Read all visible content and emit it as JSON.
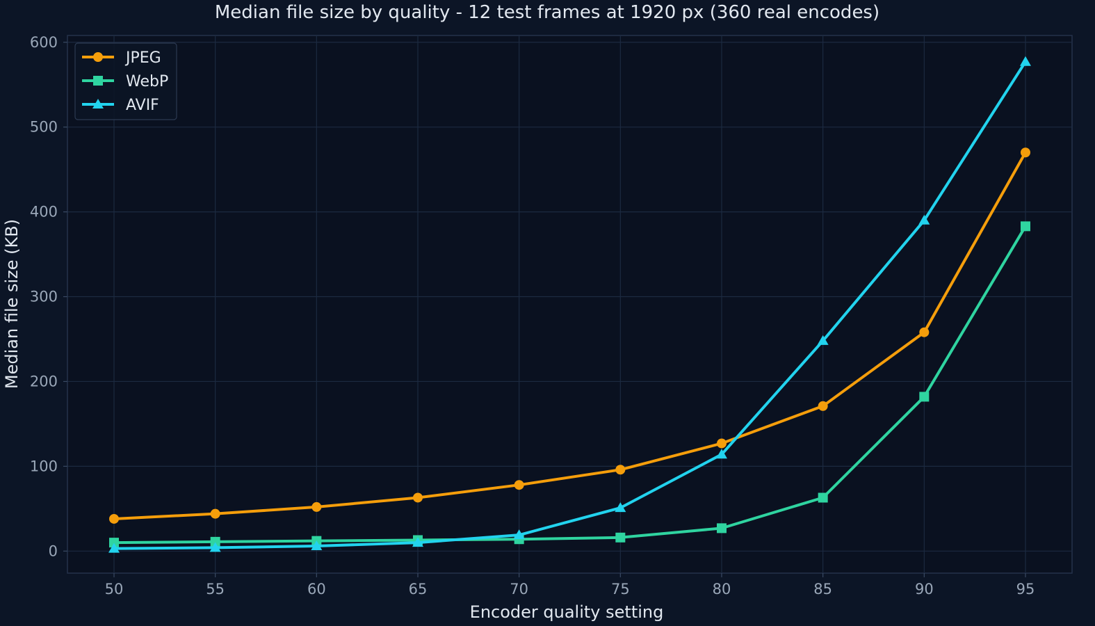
{
  "chart_data": {
    "type": "line",
    "title": "Median file size by quality - 12 test frames at 1920 px (360 real encodes)",
    "xlabel": "Encoder quality setting",
    "ylabel": "Median file size (KB)",
    "x": [
      50,
      55,
      60,
      65,
      70,
      75,
      80,
      85,
      90,
      95
    ],
    "xlim": [
      47.7,
      97.3
    ],
    "ylim": [
      -26,
      608
    ],
    "xticks": [
      50,
      55,
      60,
      65,
      70,
      75,
      80,
      85,
      90,
      95
    ],
    "yticks": [
      0,
      100,
      200,
      300,
      400,
      500,
      600
    ],
    "grid": true,
    "legend_position": "top-left",
    "series": [
      {
        "name": "JPEG",
        "color": "#f59e0b",
        "marker": "circle",
        "values": [
          38,
          44,
          52,
          63,
          78,
          96,
          127,
          171,
          258,
          470
        ]
      },
      {
        "name": "WebP",
        "color": "#2fd4a0",
        "marker": "square",
        "values": [
          10,
          11,
          12,
          13,
          14,
          16,
          27,
          63,
          182,
          383
        ]
      },
      {
        "name": "AVIF",
        "color": "#22d3ee",
        "marker": "triangle",
        "values": [
          3,
          4,
          6,
          10,
          19,
          51,
          114,
          248,
          390,
          577
        ]
      }
    ]
  }
}
